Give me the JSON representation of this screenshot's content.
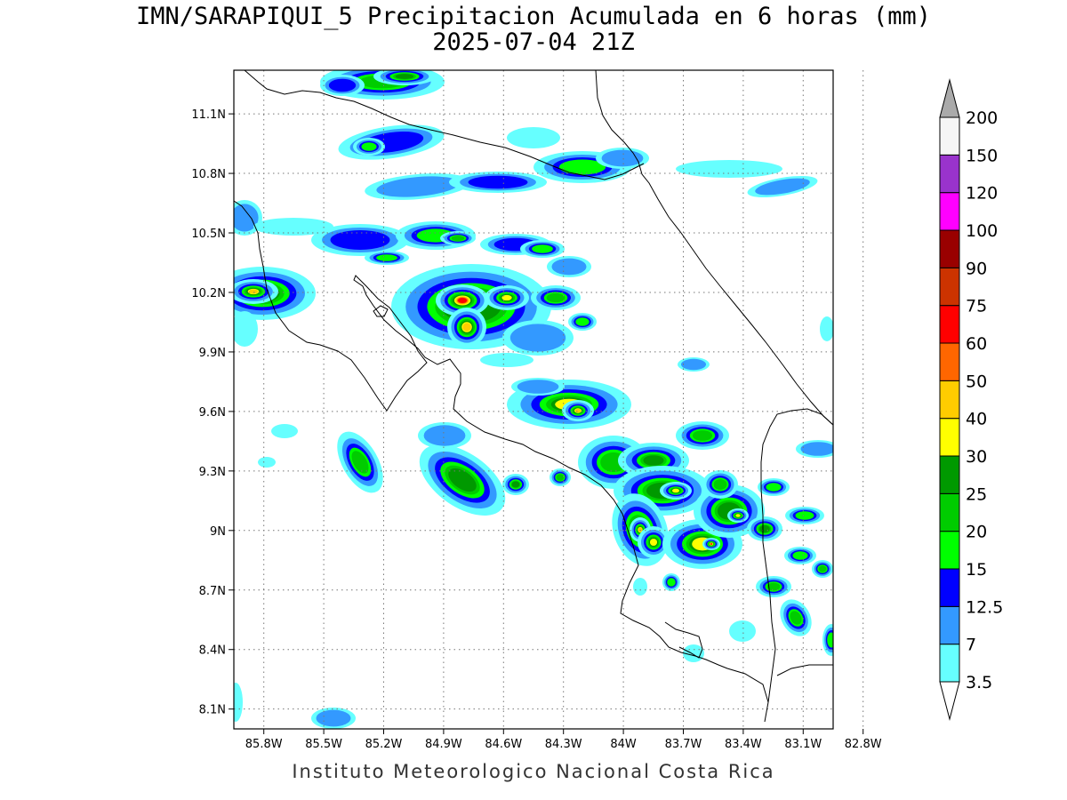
{
  "title": {
    "line1": "IMN/SARAPIQUI_5 Precipitacion Acumulada en 6 horas (mm)",
    "line2": "2025-07-04 21Z"
  },
  "footer": "Instituto Meteorologico Nacional Costa Rica",
  "map": {
    "region": "Costa Rica",
    "lat_range": [
      8.0,
      11.32
    ],
    "lon_range": [
      -85.95,
      -82.95
    ],
    "lat_ticks": [
      "11.1N",
      "10.8N",
      "10.5N",
      "10.2N",
      "9.9N",
      "9.6N",
      "9.3N",
      "9N",
      "8.7N",
      "8.4N",
      "8.1N"
    ],
    "lon_ticks": [
      "85.8W",
      "85.5W",
      "85.2W",
      "84.9W",
      "84.6W",
      "84.3W",
      "84W",
      "83.7W",
      "83.4W",
      "83.1W",
      "82.8W"
    ],
    "grid": "dotted"
  },
  "legend": {
    "units": "mm",
    "levels": [
      {
        "label": "3.5",
        "color": "#66ffff"
      },
      {
        "label": "7",
        "color": "#3399ff"
      },
      {
        "label": "12.5",
        "color": "#0000ff"
      },
      {
        "label": "15",
        "color": "#00ff00"
      },
      {
        "label": "20",
        "color": "#00cc00"
      },
      {
        "label": "25",
        "color": "#009900"
      },
      {
        "label": "30",
        "color": "#ffff00"
      },
      {
        "label": "40",
        "color": "#ffcc00"
      },
      {
        "label": "50",
        "color": "#ff6600"
      },
      {
        "label": "60",
        "color": "#ff0000"
      },
      {
        "label": "75",
        "color": "#cc3300"
      },
      {
        "label": "90",
        "color": "#990000"
      },
      {
        "label": "100",
        "color": "#ff00ff"
      },
      {
        "label": "120",
        "color": "#9933cc"
      },
      {
        "label": "150",
        "color": "#f5f5f5"
      },
      {
        "label": "200",
        "color": "#aaaaaa"
      }
    ]
  }
}
